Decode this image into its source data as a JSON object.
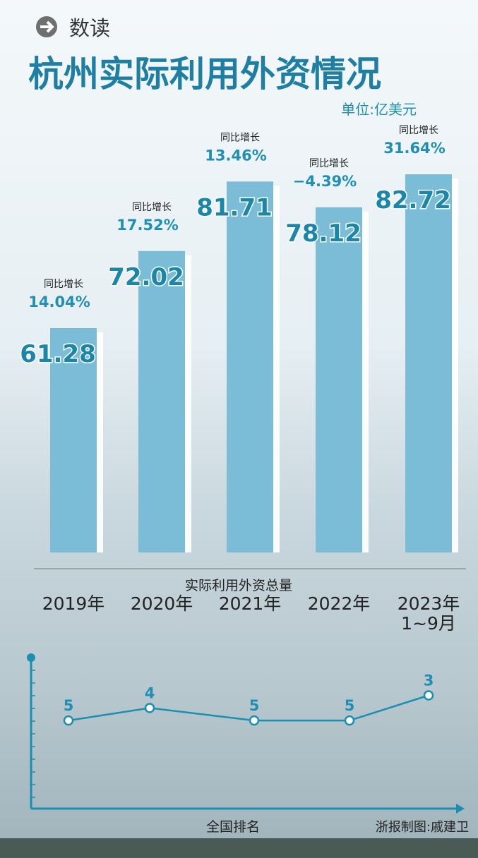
{
  "header": {
    "tag": "数读",
    "title": "杭州实际利用外资情况",
    "unit": "单位:亿美元"
  },
  "chart_data": [
    {
      "type": "bar",
      "categories": [
        "2019年",
        "2020年",
        "2021年",
        "2022年",
        "2023年\n1~9月"
      ],
      "values": [
        61.28,
        72.02,
        81.71,
        78.12,
        82.72
      ],
      "color": "#7bbdd6",
      "ylim": [
        30,
        84
      ],
      "growth_label": "同比增长",
      "growth": [
        14.04,
        17.52,
        13.46,
        -4.39,
        31.64
      ],
      "growth_labels": [
        "14.04%",
        "17.52%",
        "13.46%",
        "−4.39%",
        "31.64%"
      ],
      "xlabel": "实际利用外资总量"
    },
    {
      "type": "line",
      "values": [
        5,
        4,
        5,
        5,
        3
      ],
      "color": "#1a8fb0",
      "ylim": [
        12,
        0
      ],
      "ylabel": "全国排名"
    }
  ],
  "credit": "浙报制图:戚建卫"
}
